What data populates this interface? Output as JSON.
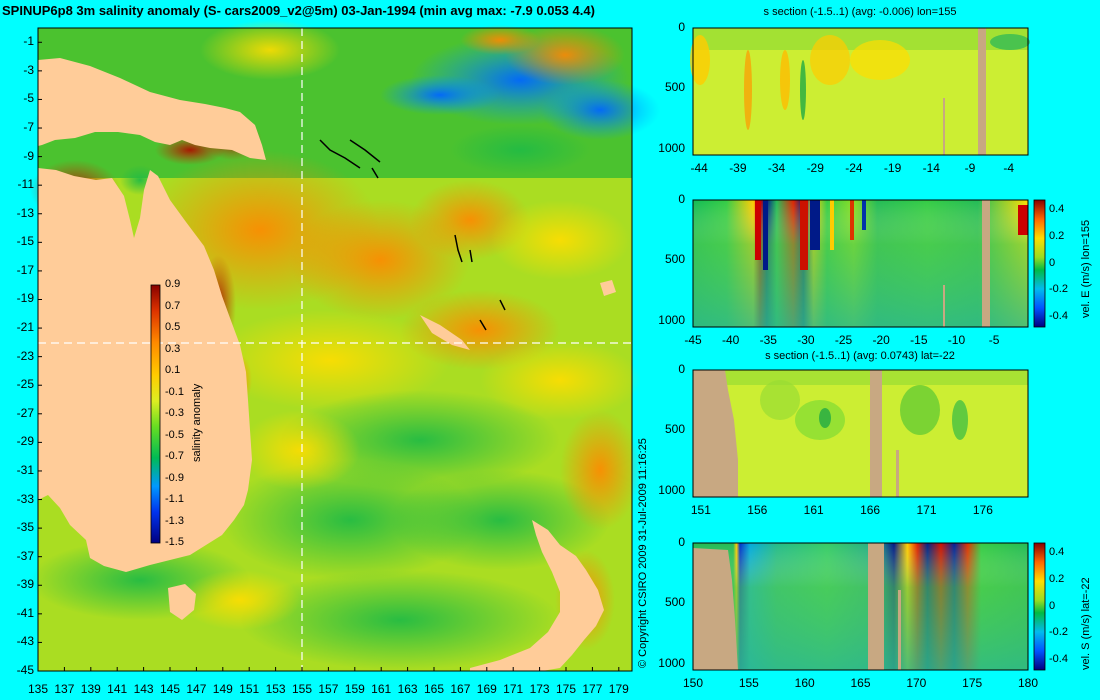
{
  "title": "SPINUP6p8 3m salinity anomaly (S- cars2009_v2@5m) 03-Jan-1994 (min avg max: -7.9 0.053 4.4)",
  "copyright": "© Copyright CSIRO 2009   31-Jul-2009 11:16:25",
  "colors": {
    "background": "#00ffff",
    "land_map": "#ffcc99",
    "land_section": "#c8a882",
    "colormap": [
      "#000080",
      "#0033ee",
      "#0099ff",
      "#00bb55",
      "#33cc33",
      "#99ee33",
      "#ddee22",
      "#ffcc00",
      "#ff8800",
      "#dd3300",
      "#880000"
    ]
  },
  "chart_data": [
    {
      "id": "map",
      "type": "heatmap",
      "title": "",
      "x_ticks": [
        "135",
        "137",
        "139",
        "141",
        "143",
        "145",
        "147",
        "149",
        "151",
        "153",
        "155",
        "157",
        "159",
        "161",
        "163",
        "165",
        "167",
        "169",
        "171",
        "173",
        "175",
        "177",
        "179"
      ],
      "y_ticks": [
        "-1",
        "-3",
        "-5",
        "-7",
        "-9",
        "-11",
        "-13",
        "-15",
        "-17",
        "-19",
        "-21",
        "-23",
        "-25",
        "-27",
        "-29",
        "-31",
        "-33",
        "-35",
        "-37",
        "-39",
        "-41",
        "-43",
        "-45"
      ],
      "xlim": [
        135,
        180
      ],
      "ylim": [
        -45,
        0
      ],
      "colorbar": {
        "label": "salinity anomaly",
        "ticks": [
          "0.9",
          "0.7",
          "0.5",
          "0.3",
          "0.1",
          "-0.1",
          "-0.3",
          "-0.5",
          "-0.7",
          "-0.9",
          "-1.1",
          "-1.3",
          "-1.5"
        ],
        "range": [
          -1.5,
          0.9
        ]
      },
      "section_lines": {
        "lon": 155,
        "lat": -22
      }
    },
    {
      "id": "s-section-lon",
      "type": "heatmap",
      "title": "s section (-1.5..1) (avg: -0.006) lon=155",
      "x_ticks": [
        "-44",
        "-39",
        "-34",
        "-29",
        "-24",
        "-19",
        "-14",
        "-9",
        "-4"
      ],
      "y_ticks": [
        "0",
        "500",
        "1000"
      ]
    },
    {
      "id": "vel-e-section",
      "type": "heatmap",
      "title": "",
      "x_ticks": [
        "-45",
        "-40",
        "-35",
        "-30",
        "-25",
        "-20",
        "-15",
        "-10",
        "-5"
      ],
      "y_ticks": [
        "0",
        "500",
        "1000"
      ],
      "colorbar": {
        "label": "vel. E (m/s) lon=155",
        "ticks": [
          "0.4",
          "0.2",
          "0",
          "-0.2",
          "-0.4"
        ],
        "range": [
          -0.4,
          0.4
        ]
      }
    },
    {
      "id": "s-section-lat",
      "type": "heatmap",
      "title": "s section (-1.5..1) (avg: 0.0743) lat=-22",
      "x_ticks": [
        "151",
        "156",
        "161",
        "166",
        "171",
        "176"
      ],
      "y_ticks": [
        "0",
        "500",
        "1000"
      ]
    },
    {
      "id": "vel-s-section",
      "type": "heatmap",
      "title": "",
      "x_ticks": [
        "150",
        "155",
        "160",
        "165",
        "170",
        "175",
        "180"
      ],
      "y_ticks": [
        "0",
        "500",
        "1000"
      ],
      "colorbar": {
        "label": "vel. S (m/s) lat=-22",
        "ticks": [
          "0.4",
          "0.2",
          "0",
          "-0.2",
          "-0.4"
        ],
        "range": [
          -0.4,
          0.4
        ]
      }
    }
  ]
}
